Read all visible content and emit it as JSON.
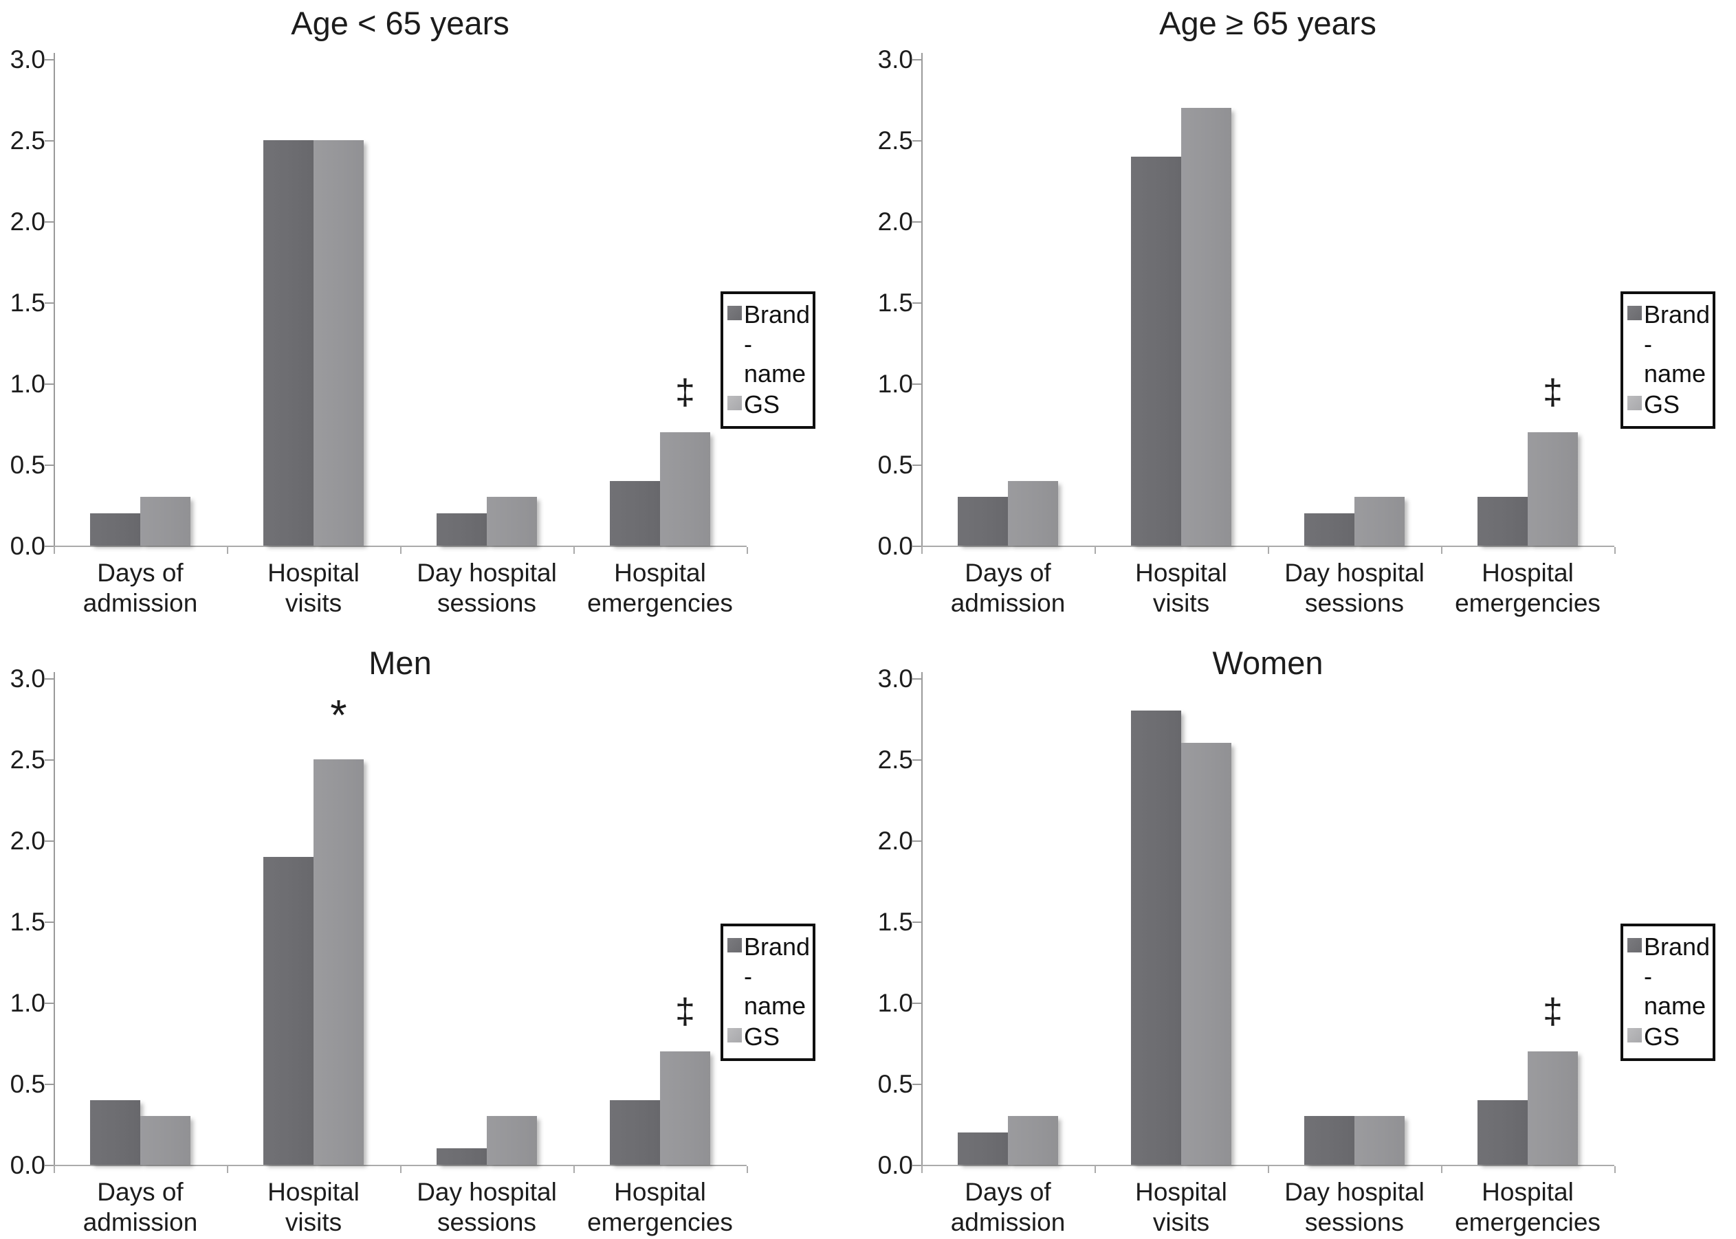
{
  "styles": {
    "bar_brand_color": "#6d6d71",
    "bar_gs_color": "#969699",
    "legend_brand_swatch": "#6f6f73",
    "legend_gs_swatch": "#b1b1b4",
    "axis_color": "#9a9a9a",
    "baseline_color": "#ababab",
    "text_color": "#1a1a1a"
  },
  "y_axis": {
    "min": 0.0,
    "max": 3.0,
    "major_step": 0.5,
    "labels": [
      "3.0",
      "2.5",
      "2.0",
      "1.5",
      "1.0",
      "0.5",
      "0.0"
    ]
  },
  "legend": {
    "items": [
      {
        "label": "Brand-name",
        "series": "brand"
      },
      {
        "label": "GS",
        "series": "gs"
      }
    ]
  },
  "chart_data": [
    {
      "type": "bar",
      "title": "Age < 65 years",
      "slug": "age-lt-65",
      "categories": [
        "Days of admission",
        "Hospital visits",
        "Day hospital sessions",
        "Hospital emergencies"
      ],
      "category_lines": [
        [
          "Days of",
          "admission"
        ],
        [
          "Hospital",
          "visits"
        ],
        [
          "Day hospital",
          "sessions"
        ],
        [
          "Hospital",
          "emergencies"
        ]
      ],
      "series": [
        {
          "name": "Brand-name",
          "values": [
            0.2,
            2.5,
            0.2,
            0.4
          ]
        },
        {
          "name": "GS",
          "values": [
            0.3,
            2.5,
            0.3,
            0.7
          ]
        }
      ],
      "gs_markers": [
        "",
        "",
        "",
        "‡"
      ],
      "ylim": [
        0,
        3
      ],
      "grid": false,
      "legend_position": "right"
    },
    {
      "type": "bar",
      "title": "Age ≥ 65 years",
      "slug": "age-ge-65",
      "categories": [
        "Days of admission",
        "Hospital visits",
        "Day hospital sessions",
        "Hospital emergencies"
      ],
      "category_lines": [
        [
          "Days of",
          "admission"
        ],
        [
          "Hospital",
          "visits"
        ],
        [
          "Day hospital",
          "sessions"
        ],
        [
          "Hospital",
          "emergencies"
        ]
      ],
      "series": [
        {
          "name": "Brand-name",
          "values": [
            0.3,
            2.4,
            0.2,
            0.3
          ]
        },
        {
          "name": "GS",
          "values": [
            0.4,
            2.7,
            0.3,
            0.7
          ]
        }
      ],
      "gs_markers": [
        "",
        "",
        "",
        "‡"
      ],
      "ylim": [
        0,
        3
      ],
      "grid": false,
      "legend_position": "right"
    },
    {
      "type": "bar",
      "title": "Men",
      "slug": "men",
      "categories": [
        "Days of admission",
        "Hospital visits",
        "Day hospital sessions",
        "Hospital emergencies"
      ],
      "category_lines": [
        [
          "Days of",
          "admission"
        ],
        [
          "Hospital",
          "visits"
        ],
        [
          "Day hospital",
          "sessions"
        ],
        [
          "Hospital",
          "emergencies"
        ]
      ],
      "series": [
        {
          "name": "Brand-name",
          "values": [
            0.4,
            1.9,
            0.1,
            0.4
          ]
        },
        {
          "name": "GS",
          "values": [
            0.3,
            2.5,
            0.3,
            0.7
          ]
        }
      ],
      "gs_markers": [
        "",
        "*",
        "",
        "‡"
      ],
      "ylim": [
        0,
        3
      ],
      "grid": false,
      "legend_position": "right"
    },
    {
      "type": "bar",
      "title": "Women",
      "slug": "women",
      "categories": [
        "Days of admission",
        "Hospital visits",
        "Day hospital sessions",
        "Hospital emergencies"
      ],
      "category_lines": [
        [
          "Days of",
          "admission"
        ],
        [
          "Hospital",
          "visits"
        ],
        [
          "Day hospital",
          "sessions"
        ],
        [
          "Hospital",
          "emergencies"
        ]
      ],
      "series": [
        {
          "name": "Brand-name",
          "values": [
            0.2,
            2.8,
            0.3,
            0.4
          ]
        },
        {
          "name": "GS",
          "values": [
            0.3,
            2.6,
            0.3,
            0.7
          ]
        }
      ],
      "gs_markers": [
        "",
        "",
        "",
        "‡"
      ],
      "ylim": [
        0,
        3
      ],
      "grid": false,
      "legend_position": "right"
    }
  ]
}
